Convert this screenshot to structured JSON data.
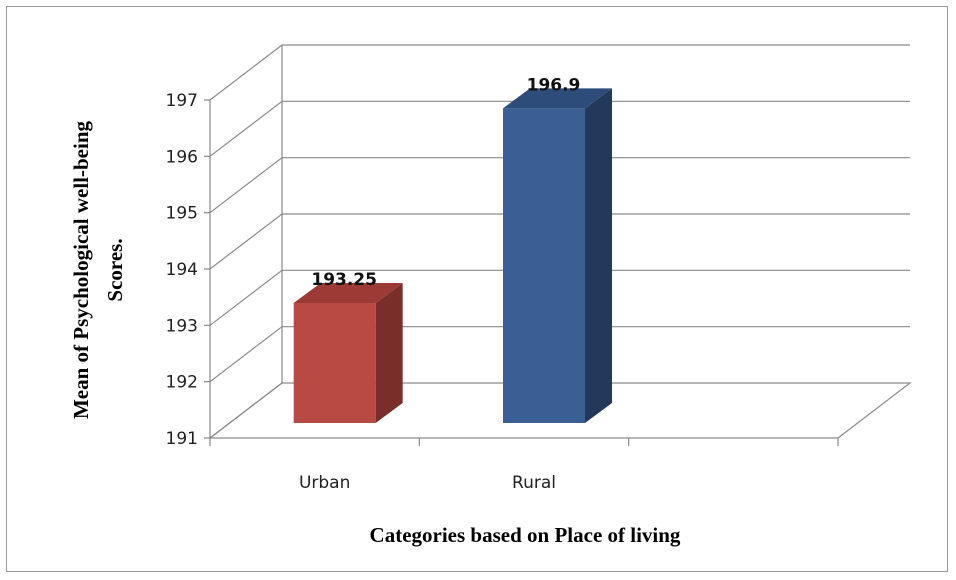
{
  "chart_data": {
    "type": "bar",
    "categories": [
      "Urban",
      "Rural"
    ],
    "values": [
      193.25,
      196.9
    ],
    "data_labels": [
      "193.25",
      "196.9"
    ],
    "xlabel": "Categories based on Place of living",
    "ylabel_lines": [
      "Mean of Psychological well-being",
      "Scores."
    ],
    "ylim": [
      191,
      197
    ],
    "yticks": [
      "191",
      "192",
      "193",
      "194",
      "195",
      "196",
      "197"
    ],
    "grid": true,
    "style": "3d-column",
    "colors": {
      "Urban": {
        "front": "#b84a43",
        "side": "#7a2e2a",
        "top": "#9c3b35"
      },
      "Rural": {
        "front": "#3a5f95",
        "side": "#23395c",
        "top": "#2e4c7a"
      }
    }
  }
}
